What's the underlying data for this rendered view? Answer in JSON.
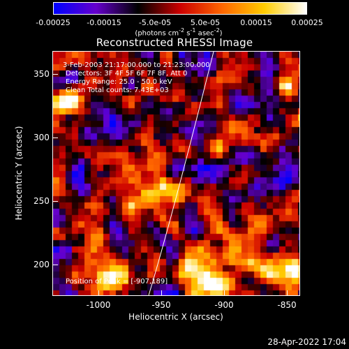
{
  "colorbar": {
    "tick_labels": [
      "-0.00025",
      "-0.00015",
      "-5.0e-05",
      "5.0e-05",
      "0.00015",
      "0.00025"
    ],
    "range": [
      -0.00025,
      0.00025
    ],
    "unit_prefix": "(photons cm",
    "unit_exp1": "-2",
    "unit_mid1": " s",
    "unit_exp2": "-1",
    "unit_mid2": " asec",
    "unit_exp3": "-2",
    "unit_suffix": ")",
    "colormap": [
      "#0000ff",
      "#6600cc",
      "#000000",
      "#cc0000",
      "#ff6600",
      "#ffcc00",
      "#ffffff"
    ]
  },
  "title": "Reconstructed RHESSI Image",
  "info": {
    "time_range": "3-Feb-2003 21:17:00.000 to 21:23:00.000",
    "detectors": "Detectors: 3F 4F 5F 6F 7F 8F, Att 0",
    "energy": "Energy Range: 25.0 - 50.0 keV",
    "clean": "Clean    Total counts: 7.43E+03",
    "peak": "Position of Peak = [-907,189]"
  },
  "axes": {
    "xlabel": "Heliocentric X (arcsec)",
    "ylabel": "Heliocentric Y (arcsec)",
    "x_ticks": [
      "-1000",
      "-950",
      "-900",
      "-850"
    ],
    "y_ticks": [
      "350",
      "300",
      "250",
      "200"
    ],
    "xlim": [
      -1035,
      -838
    ],
    "ylim": [
      175,
      370
    ]
  },
  "timestamp": "28-Apr-2022 17:04",
  "colors": {
    "background": "#000000",
    "foreground": "#ffffff"
  }
}
